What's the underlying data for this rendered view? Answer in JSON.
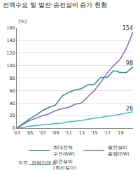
{
  "chart_data": {
    "type": "line",
    "title": "전력수요 및 발전·송전설비 증가 현황",
    "y_label": "(%)",
    "source": "자료: 전력거래소",
    "x": [
      2003,
      2004,
      2005,
      2006,
      2007,
      2008,
      2009,
      2010,
      2011,
      2012,
      2013,
      2014,
      2015,
      2016,
      2017,
      2018,
      2019,
      2020,
      2021
    ],
    "xlim": [
      2003,
      2021
    ],
    "xticks": [
      {
        "value": 2003,
        "label": "'03"
      },
      {
        "value": 2005,
        "label": "'05"
      },
      {
        "value": 2007,
        "label": "'07"
      },
      {
        "value": 2009,
        "label": "'09"
      },
      {
        "value": 2011,
        "label": "'11"
      },
      {
        "value": 2013,
        "label": "'13"
      },
      {
        "value": 2015,
        "label": "'15"
      },
      {
        "value": 2017,
        "label": "'17"
      },
      {
        "value": 2019,
        "label": "'19"
      }
    ],
    "ylim": [
      0,
      160
    ],
    "yticks": [
      0,
      20,
      40,
      60,
      80,
      100,
      120,
      140,
      160
    ],
    "grid": true,
    "legend": "bottom right",
    "data_labels": true,
    "series": [
      {
        "name": "최대전력 수요(GW)",
        "color": "#2e8a8f",
        "values": [
          0,
          8,
          15,
          21,
          28,
          33,
          37,
          51,
          57,
          61,
          63,
          69,
          70,
          81,
          81,
          92,
          89,
          89,
          98
        ],
        "value_labels": [
          null,
          null,
          null,
          null,
          null,
          null,
          null,
          null,
          null,
          null,
          null,
          null,
          null,
          null,
          null,
          null,
          null,
          null,
          "98"
        ]
      },
      {
        "name": "발전설비 용량(GW)",
        "color": "#8a6cc0",
        "values": [
          0,
          6,
          12,
          16,
          20,
          23,
          28,
          31,
          33,
          38,
          40,
          50,
          60,
          73,
          88,
          100,
          110,
          128,
          154
        ],
        "value_labels": [
          null,
          null,
          null,
          null,
          null,
          null,
          null,
          null,
          null,
          null,
          null,
          null,
          null,
          null,
          null,
          null,
          null,
          null,
          "154"
        ]
      },
      {
        "name": "송전설비 (회선길이)",
        "color": "#4fb3bd",
        "values": [
          0,
          1,
          3,
          4,
          5,
          6,
          7,
          8,
          10,
          11,
          12,
          14,
          16,
          17,
          19,
          20,
          22,
          24,
          26
        ],
        "value_labels": [
          null,
          null,
          null,
          null,
          null,
          null,
          null,
          null,
          null,
          null,
          null,
          null,
          null,
          null,
          null,
          null,
          null,
          null,
          "26"
        ]
      }
    ]
  }
}
